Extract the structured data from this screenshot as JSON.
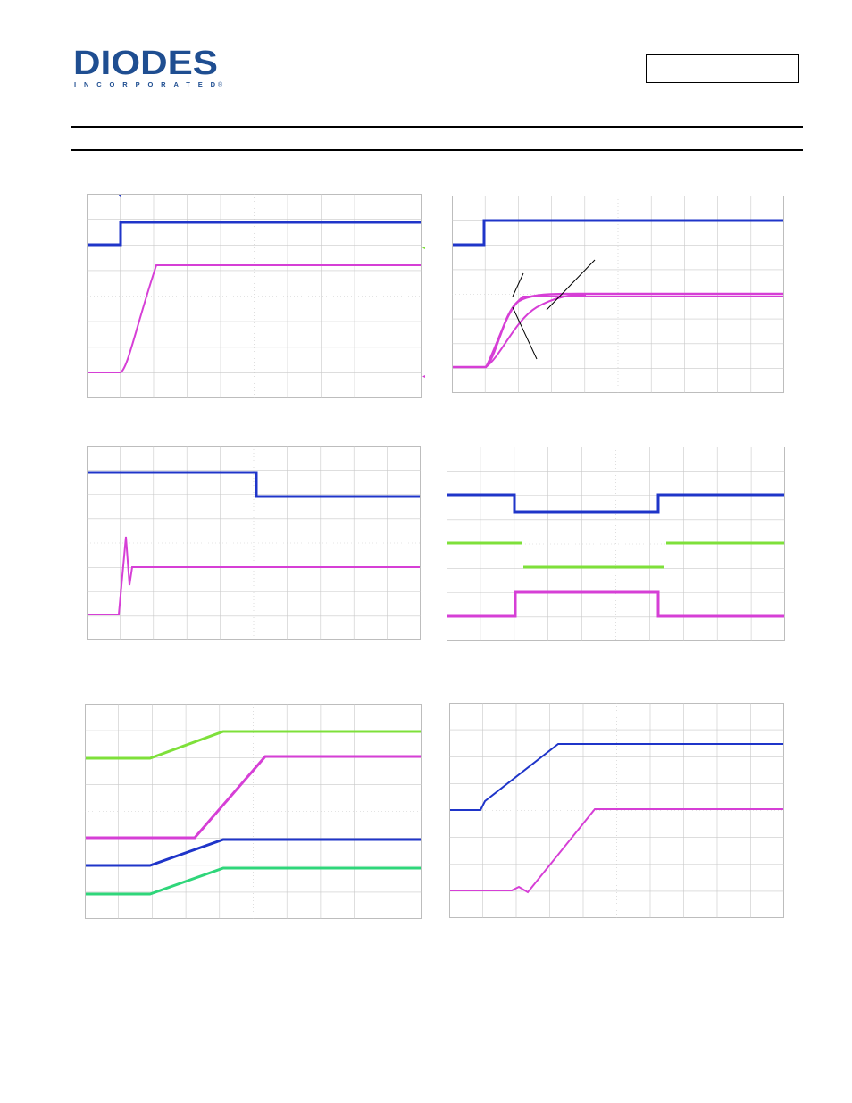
{
  "header": {
    "logo": {
      "word": "DIODES",
      "sub": "INCORPORATED",
      "mark": "®",
      "color": "#1f4e91"
    },
    "part_number_box": ""
  },
  "colors": {
    "blue": "#1f35c9",
    "magenta": "#d63fd6",
    "green": "#7ee03a",
    "teal": "#2fd67a",
    "grid": "#c9c9c9"
  },
  "scopes": [
    {
      "id": "scope-1",
      "trace_colors": [
        "blue",
        "magenta"
      ]
    },
    {
      "id": "scope-2",
      "trace_colors": [
        "blue",
        "magenta"
      ]
    },
    {
      "id": "scope-3",
      "trace_colors": [
        "blue",
        "magenta"
      ]
    },
    {
      "id": "scope-4",
      "trace_colors": [
        "blue",
        "green",
        "magenta"
      ]
    },
    {
      "id": "scope-5",
      "trace_colors": [
        "green",
        "magenta",
        "blue",
        "teal"
      ]
    },
    {
      "id": "scope-6",
      "trace_colors": [
        "blue",
        "magenta"
      ]
    }
  ]
}
